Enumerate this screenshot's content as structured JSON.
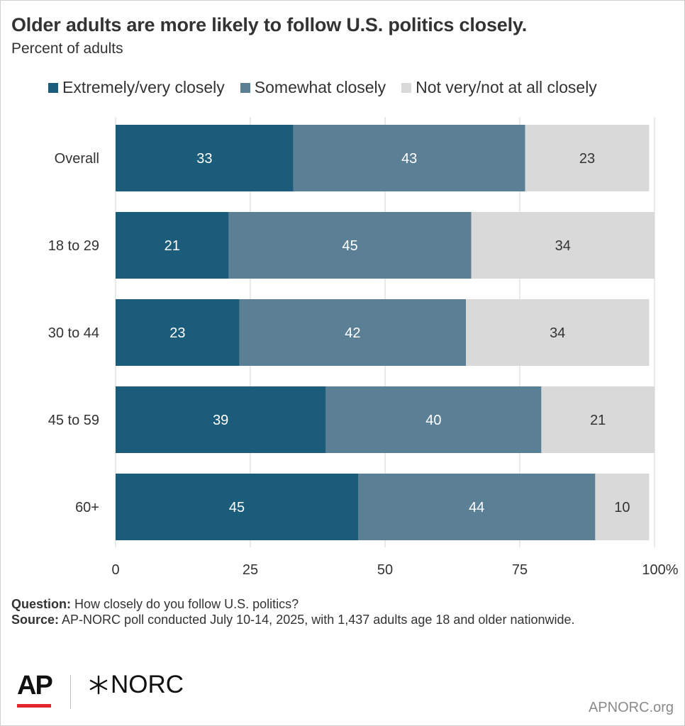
{
  "header": {
    "title": "Older adults are more likely to follow U.S. politics closely.",
    "subtitle": "Percent of adults"
  },
  "legend": [
    {
      "label": "Extremely/very closely",
      "color": "#1a5c7a"
    },
    {
      "label": "Somewhat closely",
      "color": "#5b8096"
    },
    {
      "label": "Not very/not at all closely",
      "color": "#d9d9d9"
    }
  ],
  "chart_data": {
    "type": "bar",
    "orientation": "horizontal",
    "stacked": true,
    "title": "Older adults are more likely to follow U.S. politics closely.",
    "subtitle": "Percent of adults",
    "categories": [
      "Overall",
      "18 to 29",
      "30 to 44",
      "45 to 59",
      "60+"
    ],
    "series": [
      {
        "name": "Extremely/very closely",
        "color": "#1a5c7a",
        "values": [
          33,
          21,
          23,
          39,
          45
        ]
      },
      {
        "name": "Somewhat closely",
        "color": "#5b8096",
        "values": [
          43,
          45,
          42,
          40,
          44
        ]
      },
      {
        "name": "Not very/not at all closely",
        "color": "#d9d9d9",
        "values": [
          23,
          34,
          34,
          21,
          10
        ]
      }
    ],
    "xlim": [
      0,
      100
    ],
    "xticks": [
      "0",
      "25",
      "50",
      "75",
      "100%"
    ],
    "xtick_values": [
      0,
      25,
      50,
      75,
      100
    ],
    "grid": true,
    "legend_position": "top"
  },
  "footer": {
    "question_label": "Question:",
    "question_text": "How closely do you follow U.S. politics?",
    "source_label": "Source:",
    "source_text": "AP-NORC poll conducted July 10-14, 2025, with 1,437 adults age 18 and older nationwide.",
    "logo_ap": "AP",
    "logo_norc": "NORC",
    "site": "APNORC.org"
  }
}
